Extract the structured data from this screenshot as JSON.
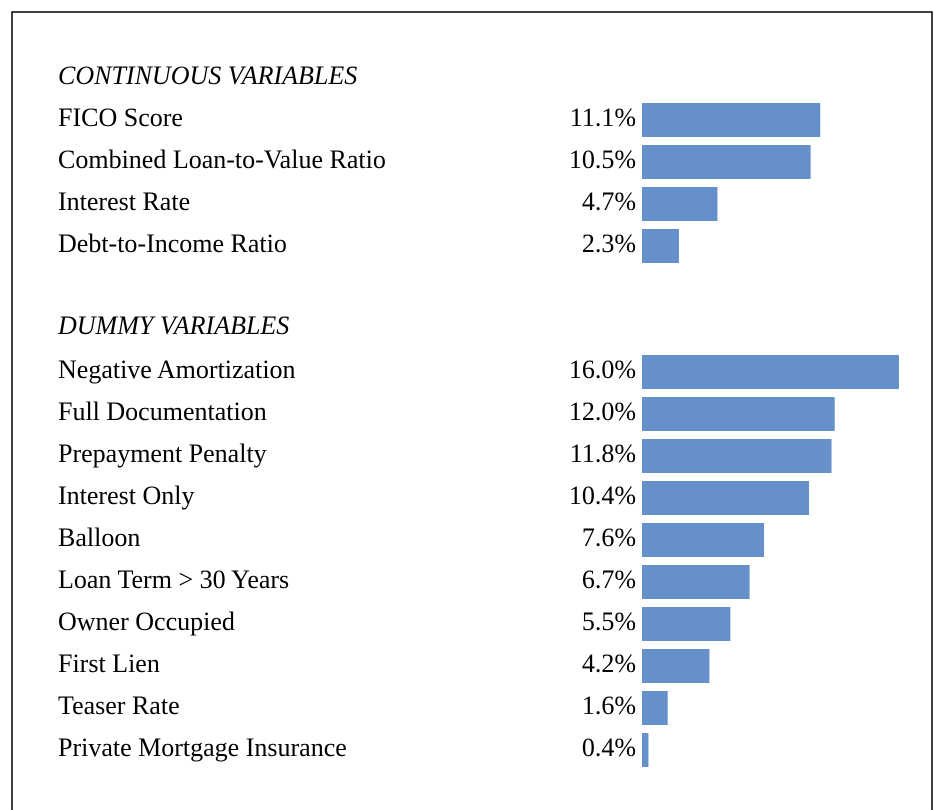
{
  "chart_data": {
    "type": "bar",
    "orientation": "horizontal",
    "color": "#6590c9",
    "groups": [
      {
        "title": "CONTINUOUS VARIABLES",
        "categories": [
          "FICO Score",
          "Combined Loan-to-Value Ratio",
          "Interest Rate",
          "Debt-to-Income Ratio"
        ],
        "values": [
          11.1,
          10.5,
          4.7,
          2.3
        ],
        "value_labels": [
          "11.1%",
          "10.5%",
          "4.7%",
          "2.3%"
        ]
      },
      {
        "title": "DUMMY VARIABLES",
        "categories": [
          "Negative Amortization",
          "Full Documentation",
          "Prepayment Penalty",
          "Interest Only",
          "Balloon",
          "Loan Term > 30 Years",
          "Owner Occupied",
          "First Lien",
          "Teaser Rate",
          "Private Mortgage Insurance"
        ],
        "values": [
          16.0,
          12.0,
          11.8,
          10.4,
          7.6,
          6.7,
          5.5,
          4.2,
          1.6,
          0.4
        ],
        "value_labels": [
          "16.0%",
          "12.0%",
          "11.8%",
          "10.4%",
          "7.6%",
          "6.7%",
          "5.5%",
          "4.2%",
          "1.6%",
          "0.4%"
        ]
      }
    ]
  }
}
